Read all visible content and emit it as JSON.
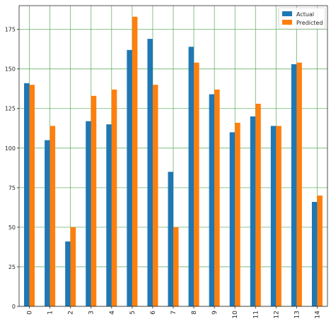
{
  "chart_data": {
    "type": "bar",
    "title": "",
    "xlabel": "",
    "ylabel": "",
    "categories": [
      "0",
      "1",
      "2",
      "3",
      "4",
      "5",
      "6",
      "7",
      "8",
      "9",
      "10",
      "11",
      "12",
      "13",
      "14"
    ],
    "series": [
      {
        "name": "Actual",
        "color": "#1f77b4",
        "values": [
          141,
          105,
          41,
          117,
          115,
          162,
          169,
          85,
          164,
          134,
          110,
          120,
          114,
          153,
          66
        ]
      },
      {
        "name": "Predicted",
        "color": "#ff7f0e",
        "values": [
          140,
          114,
          50,
          133,
          137,
          183,
          140,
          50,
          154,
          137,
          116,
          128,
          114,
          154,
          70
        ]
      }
    ],
    "yticks": [
      0,
      25,
      50,
      75,
      100,
      125,
      150,
      175
    ],
    "ylim": [
      0,
      190
    ],
    "grid": true,
    "grid_color": "#3a9a3a",
    "legend_position": "top-right",
    "xtick_rotation": "vertical"
  }
}
